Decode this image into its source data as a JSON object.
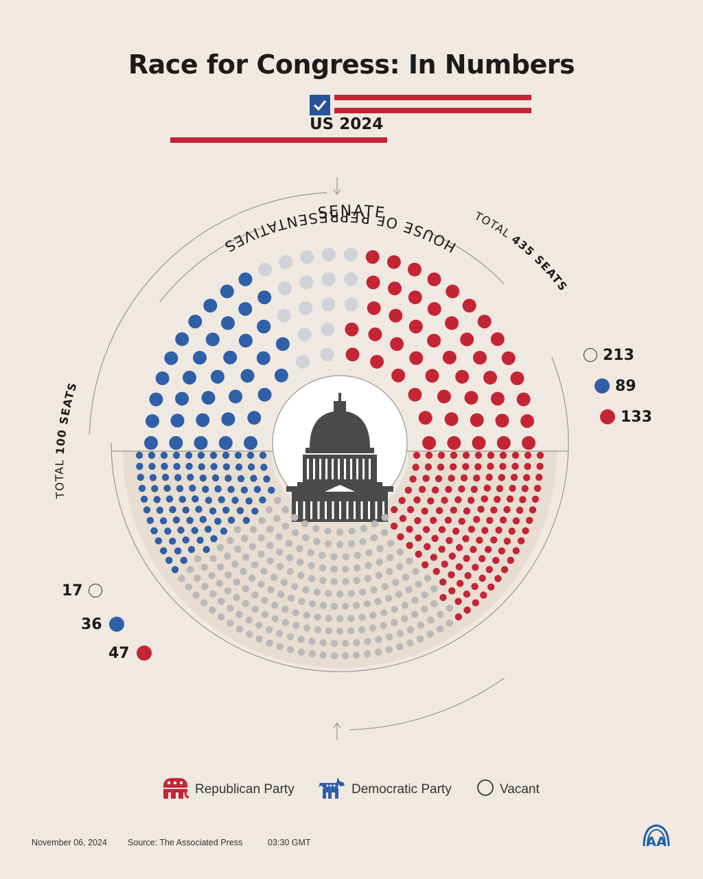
{
  "title": "Race for Congress: In Numbers",
  "subtitle": "US 2024",
  "chart_data": {
    "type": "parliament",
    "title": "Race for Congress: In Numbers",
    "subtitle": "US 2024",
    "colors": {
      "republican": "#c42535",
      "democratic": "#2f5fa7",
      "vacant": "#cfd2d8",
      "vacant_house": "#b9b9b9"
    },
    "chambers": [
      {
        "name": "SENATE",
        "total_label": "TOTAL 100 SEATS",
        "total_prefix": "TOTAL",
        "total_value": "100 SEATS",
        "series": [
          {
            "name": "Vacant",
            "value": 17
          },
          {
            "name": "Democratic Party",
            "value": 36
          },
          {
            "name": "Republican Party",
            "value": 47
          }
        ]
      },
      {
        "name": "HOUSE OF REPRESENTATIVES",
        "total_label": "TOTAL 435 SEATS",
        "total_prefix": "TOTAL",
        "total_value": "435 SEATS",
        "series": [
          {
            "name": "Vacant",
            "value": 213
          },
          {
            "name": "Democratic Party",
            "value": 89
          },
          {
            "name": "Republican Party",
            "value": 133
          }
        ]
      }
    ],
    "counts": {
      "senate": {
        "vacant": "17",
        "democratic": "36",
        "republican": "47"
      },
      "house": {
        "vacant": "213",
        "democratic": "89",
        "republican": "133"
      }
    }
  },
  "legend": [
    {
      "label": "Republican Party",
      "icon": "elephant-icon"
    },
    {
      "label": "Democratic Party",
      "icon": "donkey-icon"
    },
    {
      "label": "Vacant",
      "icon": "vacant-circle-icon"
    }
  ],
  "footer": {
    "date": "November 06, 2024",
    "source": "Source: The Associated Press",
    "time": "03:30 GMT"
  },
  "logo": "AA"
}
